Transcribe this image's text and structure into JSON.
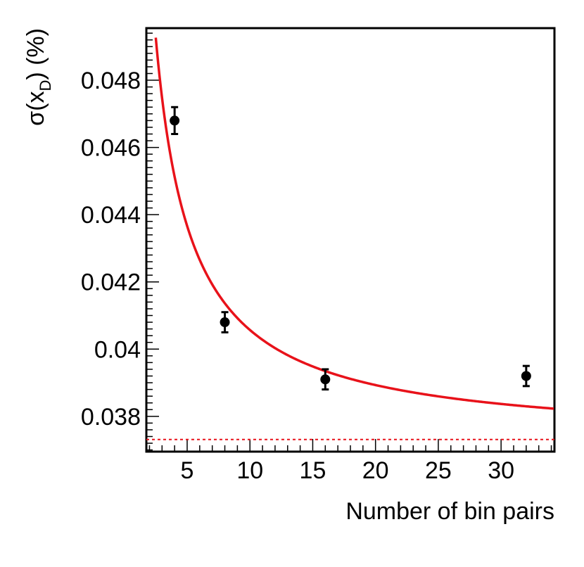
{
  "chart_data": {
    "type": "scatter",
    "title": "",
    "xlabel": "Number of bin pairs",
    "ylabel": {
      "prefix": "σ(x",
      "subscript": "D",
      "suffix": ") (%)"
    },
    "xlim": [
      1.75,
      34.25
    ],
    "ylim": [
      0.03695,
      0.04955
    ],
    "x_ticks": [
      5,
      10,
      15,
      20,
      25,
      30
    ],
    "x_tick_labels": [
      "5",
      "10",
      "15",
      "20",
      "25",
      "30"
    ],
    "y_ticks": [
      0.038,
      0.04,
      0.042,
      0.044,
      0.046,
      0.048
    ],
    "y_tick_labels": [
      "0.038",
      "0.04",
      "0.042",
      "0.044",
      "0.046",
      "0.048"
    ],
    "grid": false,
    "legend": "none",
    "points": [
      {
        "x": 4,
        "y": 0.0468,
        "err": 0.0004
      },
      {
        "x": 8,
        "y": 0.0408,
        "err": 0.0003
      },
      {
        "x": 16,
        "y": 0.0391,
        "err": 0.0003
      },
      {
        "x": 32,
        "y": 0.0392,
        "err": 0.0003
      }
    ],
    "fit_curve": {
      "model": "sqrt(a^2 + b/n)",
      "a": 0.03722,
      "b": 0.002605,
      "x_range": [
        2.5,
        34.25
      ],
      "color": "#e8121a"
    },
    "asymptote": {
      "y": 0.03731,
      "style": "dashed",
      "color": "#e8121a"
    },
    "point_color": "#000000"
  }
}
